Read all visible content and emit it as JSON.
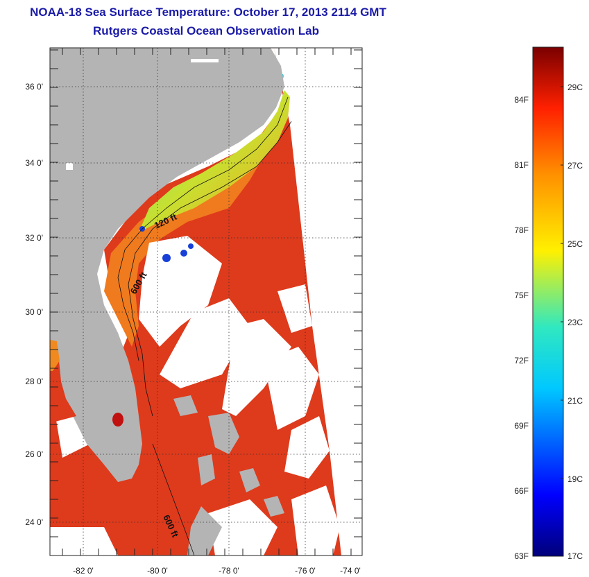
{
  "header": {
    "title": "NOAA-18 Sea Surface Temperature:  October 17, 2013 2114 GMT",
    "subtitle": "Rutgers Coastal Ocean Observation Lab"
  },
  "map": {
    "lat_ticks": [
      "36 0'",
      "34 0'",
      "32 0'",
      "30 0'",
      "28 0'",
      "26 0'",
      "24 0'"
    ],
    "lon_ticks": [
      "-82 0'",
      "-80 0'",
      "-78 0'",
      "-76 0'",
      "-74 0'"
    ],
    "contours": [
      "120 ft",
      "600 ft",
      "600 ft"
    ],
    "colors": {
      "land": "#b4b4b4",
      "cloud": "#ffffff",
      "warm_sst": "#e03018",
      "shelf_sst": "#f27a1a",
      "cool_sst": "#4fd0a0"
    }
  },
  "colorbar": {
    "f_labels": [
      "84F",
      "81F",
      "78F",
      "75F",
      "72F",
      "69F",
      "66F",
      "63F"
    ],
    "c_labels": [
      "29C",
      "27C",
      "25C",
      "23C",
      "21C",
      "19C",
      "17C"
    ],
    "colors": [
      "#00007a",
      "#0000ff",
      "#00c8ff",
      "#30e8c0",
      "#fff000",
      "#ff9000",
      "#ff2000",
      "#7a0000"
    ]
  }
}
